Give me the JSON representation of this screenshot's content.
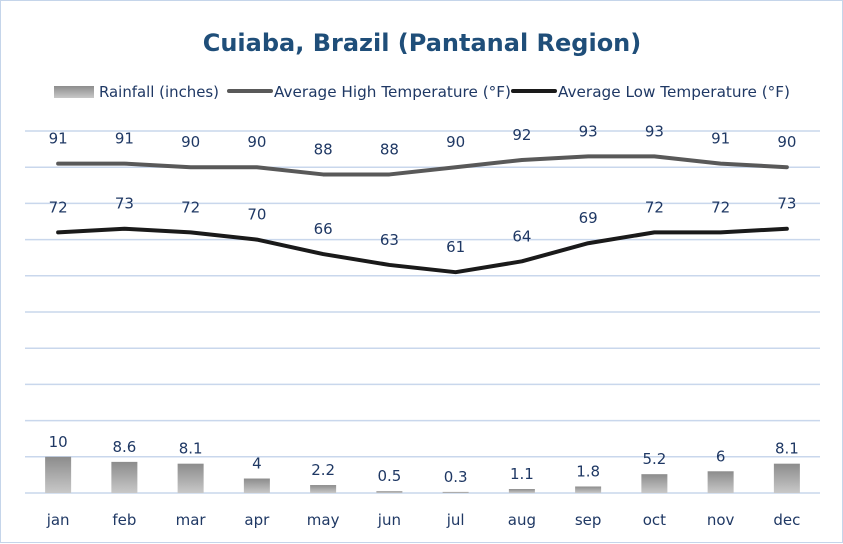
{
  "chart_data": {
    "type": "bar+line",
    "title": "Cuiaba, Brazil (Pantanal Region)",
    "categories": [
      "jan",
      "feb",
      "mar",
      "apr",
      "may",
      "jun",
      "jul",
      "aug",
      "sep",
      "oct",
      "nov",
      "dec"
    ],
    "ylim": [
      0,
      100
    ],
    "grid": true,
    "legend_position": "top",
    "series": [
      {
        "name": "Rainfall (inches)",
        "type": "bar",
        "color": "#a0a0a0",
        "values": [
          10,
          8.6,
          8.1,
          4,
          2.2,
          0.5,
          0.3,
          1.1,
          1.8,
          5.2,
          6,
          8.1
        ]
      },
      {
        "name": "Average High Temperature (°F)",
        "type": "line",
        "color": "#595959",
        "values": [
          91,
          91,
          90,
          90,
          88,
          88,
          90,
          92,
          93,
          93,
          91,
          90
        ]
      },
      {
        "name": "Average Low Temperature (°F)",
        "type": "line",
        "color": "#1a1a1a",
        "values": [
          72,
          73,
          72,
          70,
          66,
          63,
          61,
          64,
          69,
          72,
          72,
          73
        ]
      }
    ]
  }
}
